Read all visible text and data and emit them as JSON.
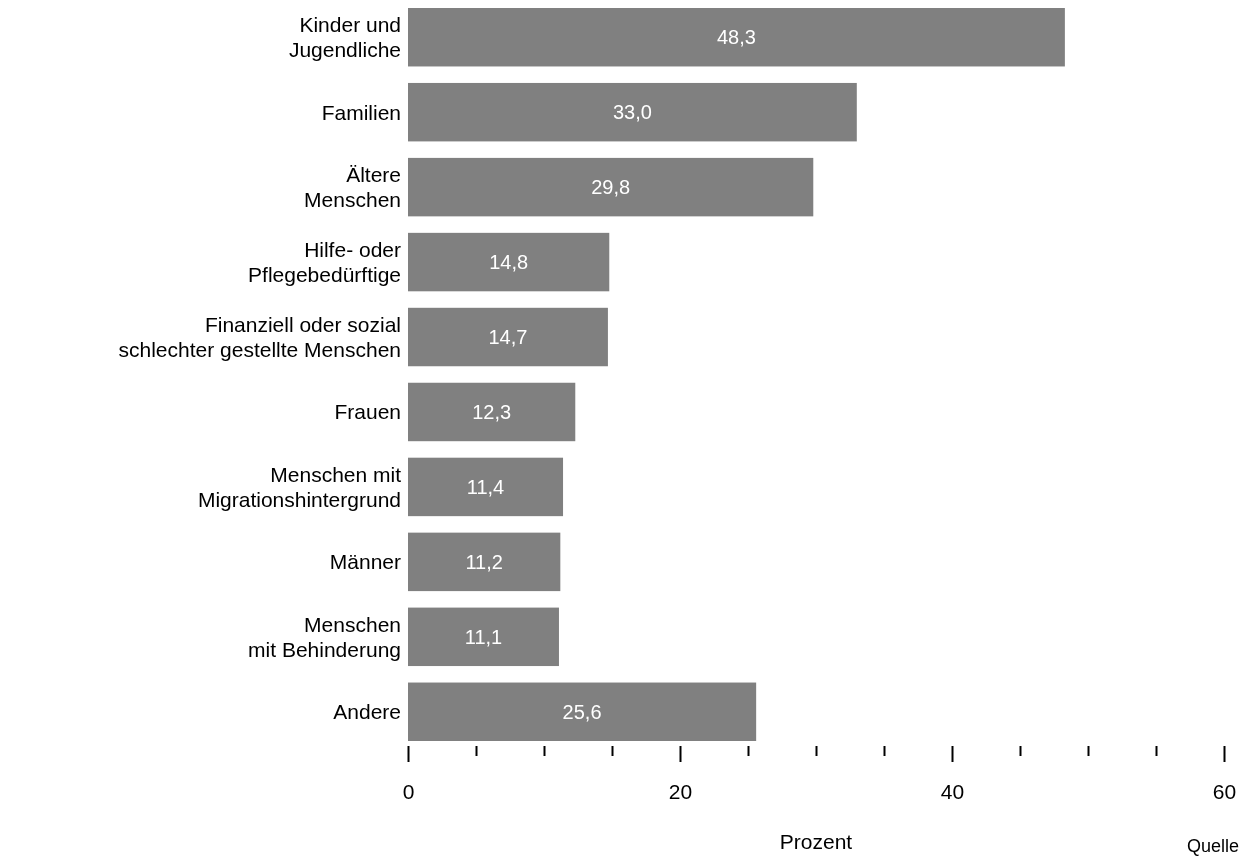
{
  "chart_data": {
    "type": "bar",
    "orientation": "horizontal",
    "categories": [
      "Kinder und\nJugendliche",
      "Familien",
      "Ältere\nMenschen",
      "Hilfe- oder\nPflegebedürftige",
      "Finanziell oder sozial\nschlechter gestellte Menschen",
      "Frauen",
      "Menschen mit\nMigrationshintergrund",
      "Männer",
      "Menschen\nmit Behinderung",
      "Andere"
    ],
    "values": [
      48.3,
      33.0,
      29.8,
      14.8,
      14.7,
      12.3,
      11.4,
      11.2,
      11.1,
      25.6
    ],
    "value_labels": [
      "48,3",
      "33,0",
      "29,8",
      "14,8",
      "14,7",
      "12,3",
      "11,4",
      "11,2",
      "11,1",
      "25,6"
    ],
    "color": "#808080",
    "xlabel": "Prozent",
    "xlim": [
      0,
      60
    ],
    "xticks": [
      0,
      {
        "value": 5,
        "label": null
      },
      {
        "value": 10,
        "label": null
      },
      {
        "value": 15,
        "label": null
      },
      20,
      {
        "value": 25,
        "label": null
      },
      {
        "value": 30,
        "label": null
      },
      {
        "value": 35,
        "label": null
      },
      40,
      {
        "value": 45,
        "label": null
      },
      {
        "value": 50,
        "label": null
      },
      {
        "value": 55,
        "label": null
      },
      60
    ],
    "grid": false,
    "annotations": [
      "Quelle"
    ]
  }
}
